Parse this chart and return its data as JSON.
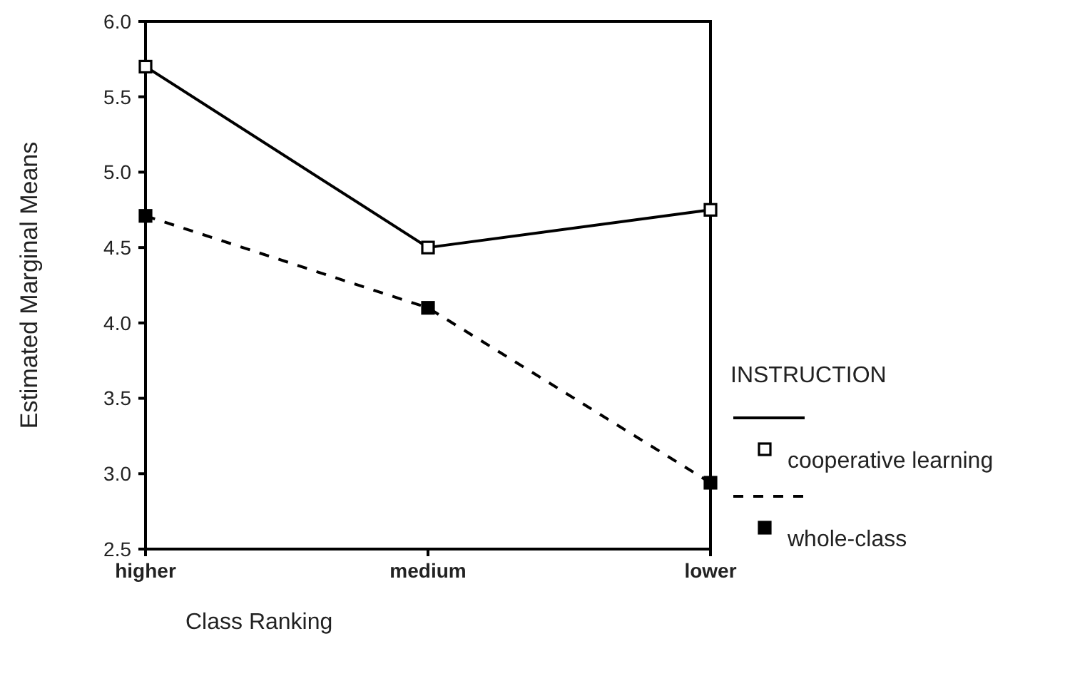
{
  "chart_data": {
    "type": "line",
    "xlabel": "Class Ranking",
    "ylabel": "Estimated Marginal Means",
    "legend_title": "INSTRUCTION",
    "categories": [
      "higher",
      "medium",
      "lower"
    ],
    "series": [
      {
        "name": "cooperative learning",
        "color": "#000000",
        "values": [
          5.7,
          4.5,
          4.75
        ],
        "line_style": "solid"
      },
      {
        "name": "whole-class",
        "color": "#000000",
        "values": [
          4.71,
          4.1,
          2.94
        ],
        "line_style": "dashed"
      }
    ],
    "ylim": [
      2.5,
      6.0
    ],
    "yticks": [
      {
        "value": 2.5,
        "label": "2.5"
      },
      {
        "value": 3,
        "label": "3.0"
      },
      {
        "value": 3.5,
        "label": "3.5"
      },
      {
        "value": 4,
        "label": "4.0"
      },
      {
        "value": 4.5,
        "label": "4.5"
      },
      {
        "value": 5,
        "label": "5.0"
      },
      {
        "value": 5.5,
        "label": "5.5"
      },
      {
        "value": 6,
        "label": "6.0"
      }
    ],
    "marker": "square",
    "legend": "right",
    "grid": false
  }
}
